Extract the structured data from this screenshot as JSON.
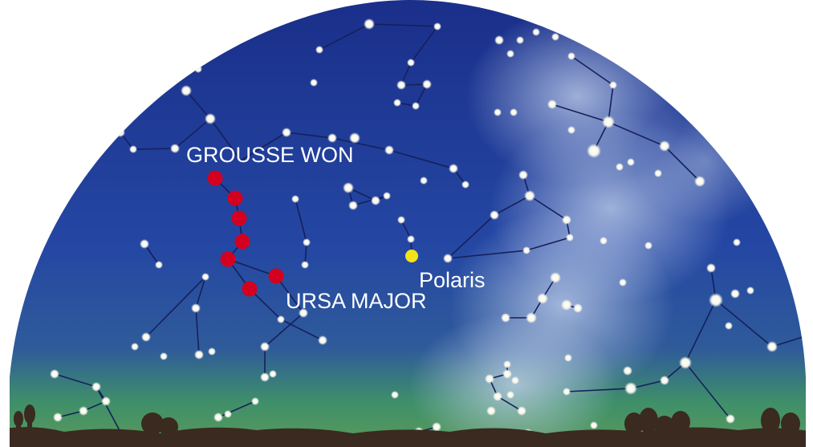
{
  "labels": {
    "asterism": "GROUSSE WON",
    "constellation": "URSA MAJOR",
    "star": "Polaris"
  },
  "colors": {
    "sky_top": "#1a2f8a",
    "sky_mid": "#2447a3",
    "horizon_glow": "#3f8f6a",
    "milky_way": "#c9d6ee",
    "star": "#f6f6ea",
    "highlight_star": "#d4001f",
    "polaris": "#f4e21a",
    "silhouette": "#3a2a20",
    "label_text": "#ffffff"
  }
}
